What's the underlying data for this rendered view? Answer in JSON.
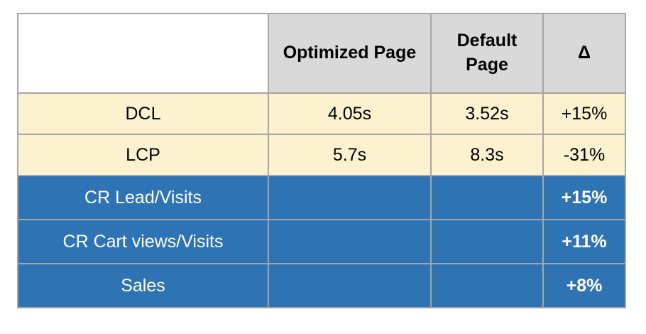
{
  "chart_data": {
    "type": "table",
    "columns": [
      "",
      "Optimized Page",
      "Default Page",
      "Δ"
    ],
    "rows": [
      [
        "DCL",
        "4.05s",
        "3.52s",
        "+15%"
      ],
      [
        "LCP",
        "5.7s",
        "8.3s",
        "-31%"
      ],
      [
        "CR Lead/Visits",
        "",
        "",
        "+15%"
      ],
      [
        "CR Cart views/Visits",
        "",
        "",
        "+11%"
      ],
      [
        "Sales",
        "",
        "",
        "+8%"
      ]
    ],
    "title": "",
    "layout_hints": {
      "header_bg": "#d9d9d9",
      "timing_rows_bg": "#fdf2cf",
      "conversion_rows_bg": "#2e74b5",
      "border_color": "#a6a6a6",
      "header_bold": true,
      "blue_delta_bold": true
    }
  },
  "table": {
    "header": {
      "blank": "",
      "optimized": "Optimized Page",
      "default": "Default Page",
      "delta": "Δ"
    },
    "rows": [
      {
        "label": "DCL",
        "optimized": "4.05s",
        "default": "3.52s",
        "delta": "+15%"
      },
      {
        "label": "LCP",
        "optimized": "5.7s",
        "default": "8.3s",
        "delta": "-31%"
      },
      {
        "label": "CR Lead/Visits",
        "optimized": "",
        "default": "",
        "delta": "+15%"
      },
      {
        "label": "CR Cart views/Visits",
        "optimized": "",
        "default": "",
        "delta": "+11%"
      },
      {
        "label": "Sales",
        "optimized": "",
        "default": "",
        "delta": "+8%"
      }
    ],
    "colors": {
      "header_bg": "#d9d9d9",
      "cream_bg": "#fdf2cf",
      "blue_bg": "#2e74b5",
      "border": "#a6a6a6",
      "text_dark": "#000000",
      "text_light": "#ffffff"
    }
  }
}
